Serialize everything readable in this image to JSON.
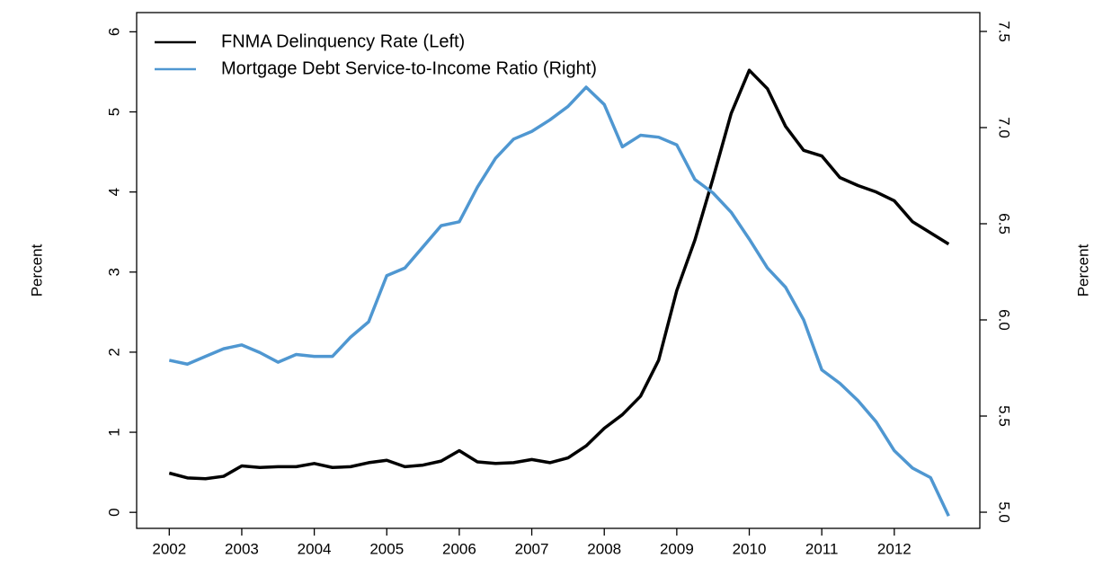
{
  "chart_data": {
    "type": "line",
    "x": [
      2002,
      2002.25,
      2002.5,
      2002.75,
      2003,
      2003.25,
      2003.5,
      2003.75,
      2004,
      2004.25,
      2004.5,
      2004.75,
      2005,
      2005.25,
      2005.5,
      2005.75,
      2006,
      2006.25,
      2006.5,
      2006.75,
      2007,
      2007.25,
      2007.5,
      2007.75,
      2008,
      2008.25,
      2008.5,
      2008.75,
      2009,
      2009.25,
      2009.5,
      2009.75,
      2010,
      2010.25,
      2010.5,
      2010.75,
      2011,
      2011.25,
      2011.5,
      2011.75,
      2012,
      2012.25,
      2012.5,
      2012.75
    ],
    "series": [
      {
        "name": "FNMA Delinquency Rate (Left)",
        "color": "#000000",
        "values": [
          0.49,
          0.43,
          0.42,
          0.45,
          0.58,
          0.56,
          0.57,
          0.57,
          0.61,
          0.56,
          0.57,
          0.62,
          0.65,
          0.57,
          0.59,
          0.64,
          0.77,
          0.63,
          0.61,
          0.62,
          0.66,
          0.62,
          0.68,
          0.83,
          1.05,
          1.22,
          1.45,
          1.9,
          2.77,
          3.4,
          4.17,
          4.98,
          5.52,
          5.29,
          4.82,
          4.52,
          4.45,
          4.18,
          4.08,
          4.0,
          3.89,
          3.63,
          3.49,
          3.35
        ]
      },
      {
        "name": "Mortgage Debt Service-to-Income Ratio (Right)",
        "color": "#4f97d1",
        "axis": "y2",
        "values": [
          5.79,
          5.77,
          5.81,
          5.85,
          5.87,
          5.83,
          5.78,
          5.82,
          5.81,
          5.81,
          5.91,
          5.99,
          6.23,
          6.27,
          6.38,
          6.49,
          6.51,
          6.69,
          6.84,
          6.94,
          6.98,
          7.04,
          7.11,
          7.21,
          7.12,
          6.9,
          6.96,
          6.95,
          6.91,
          6.73,
          6.66,
          6.56,
          6.42,
          6.27,
          6.17,
          6.0,
          5.74,
          5.67,
          5.58,
          5.47,
          5.32,
          5.23,
          5.18,
          4.98
        ]
      }
    ],
    "xlim": [
      2001.55,
      2013.18
    ],
    "xticks": [
      2002,
      2003,
      2004,
      2005,
      2006,
      2007,
      2008,
      2009,
      2010,
      2011,
      2012
    ],
    "ylim": [
      -0.2,
      6.24
    ],
    "yticks": [
      0,
      1,
      2,
      3,
      4,
      5,
      6
    ],
    "y2lim": [
      4.916,
      7.598
    ],
    "y2ticks": [
      {
        "value": 5,
        "label": "5.0"
      },
      5.5,
      {
        "value": 6,
        "label": "6.0"
      },
      6.5,
      {
        "value": 7,
        "label": "7.0"
      },
      7.5
    ],
    "ylabel": "Percent",
    "y2label": "Percent",
    "y2label_color": "#4f97d1",
    "legend": "top-left"
  }
}
